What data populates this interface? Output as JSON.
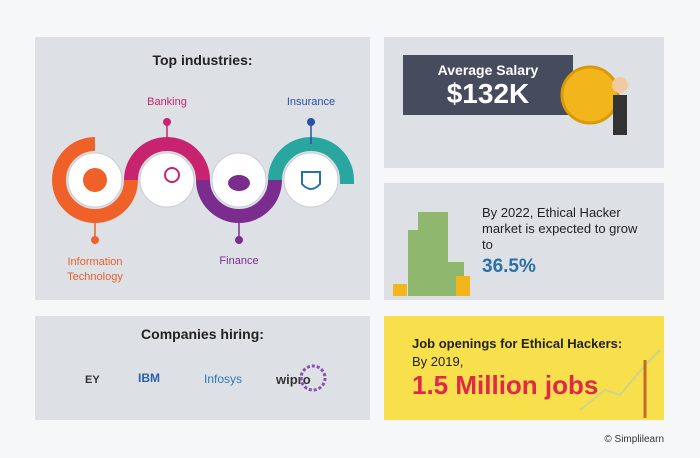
{
  "top_industries": {
    "title": "Top industries:",
    "items": [
      "Information Technology",
      "Banking",
      "Finance",
      "Insurance"
    ]
  },
  "salary": {
    "label": "Average Salary",
    "value": "$132K"
  },
  "market": {
    "text": "By 2022, Ethical Hacker market is expected to grow to",
    "value": "36.5%"
  },
  "companies": {
    "title": "Companies hiring:",
    "logos": [
      "EY",
      "IBM",
      "Infosys",
      "wipro"
    ]
  },
  "jobs": {
    "title": "Job openings for Ethical Hackers:",
    "subtitle": "By 2019,",
    "value": "1.5 Million jobs"
  },
  "footer": "© Simplilearn"
}
